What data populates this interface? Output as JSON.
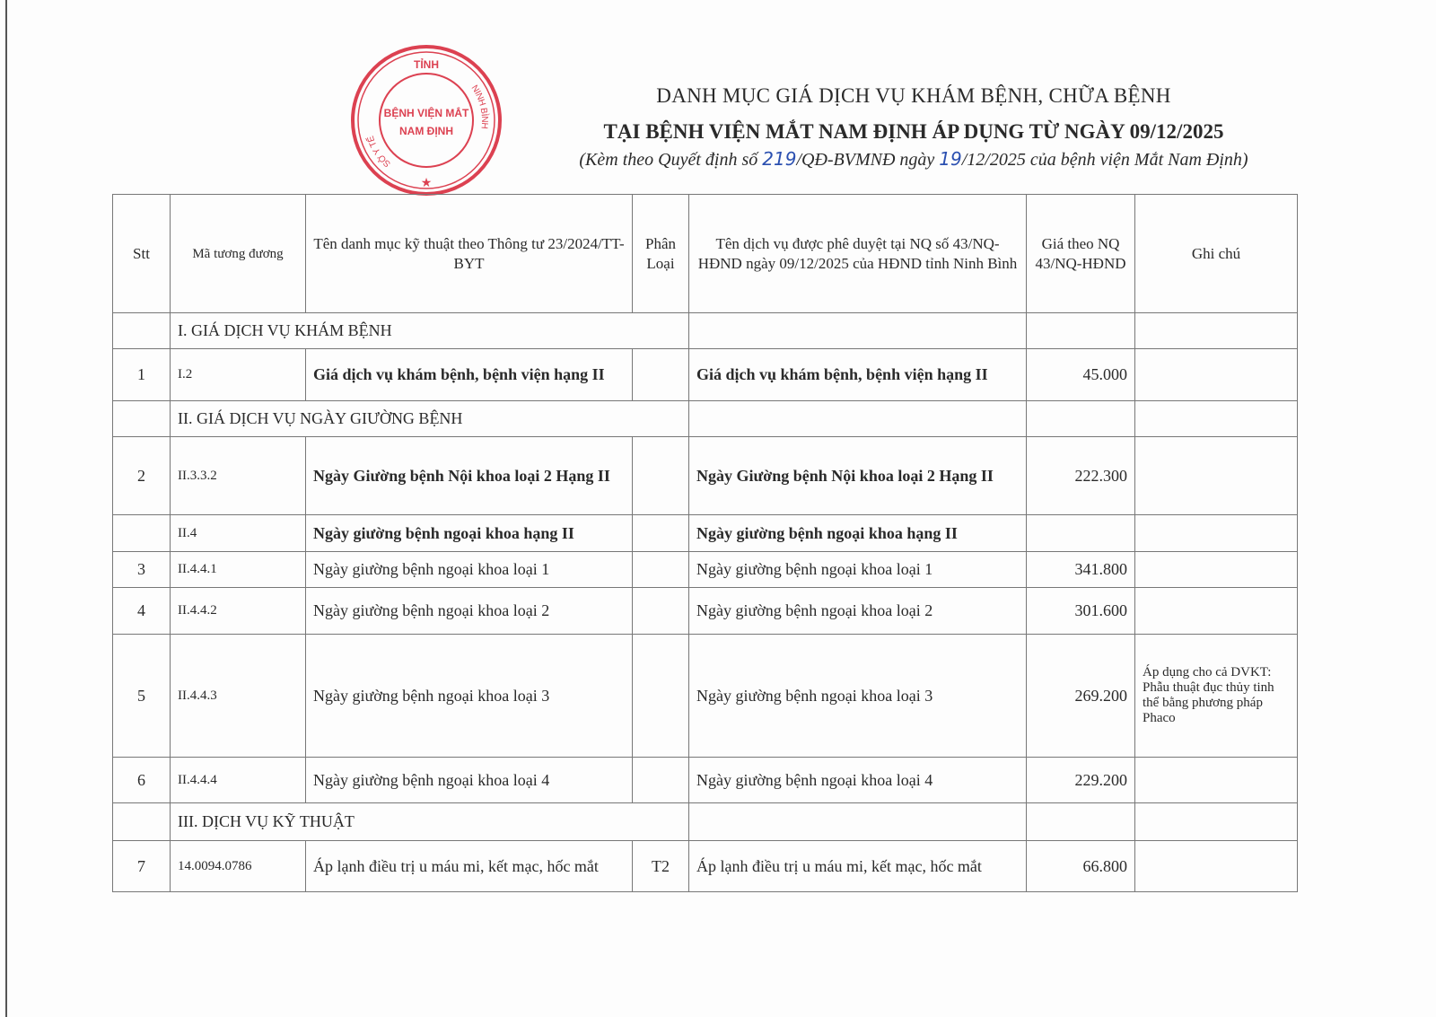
{
  "title": {
    "line1": "DANH MỤC GIÁ DỊCH VỤ KHÁM BỆNH, CHỮA BỆNH",
    "line2": "TẠI BỆNH VIỆN MẮT NAM ĐỊNH ÁP DỤNG TỪ NGÀY 09/12/2025",
    "line3_prefix": "(Kèm theo Quyết định số ",
    "decision_no": "219",
    "line3_mid": "/QĐ-BVMNĐ ngày ",
    "decision_day": "19",
    "line3_suffix": "/12/2025 của bệnh viện Mắt Nam Định)"
  },
  "stamp": {
    "top": "TỈNH",
    "center1": "BỆNH VIỆN MẮT",
    "center2": "NAM ĐỊNH",
    "left": "SỞ Y TẾ",
    "right": "NINH BÌNH",
    "color": "#d8283a"
  },
  "table": {
    "headers": [
      "Stt",
      "Mã tương đương",
      "Tên danh mục kỹ thuật theo Thông tư 23/2024/TT-BYT",
      "Phân Loại",
      "Tên dịch vụ được phê duyệt tại NQ số 43/NQ-HĐND ngày 09/12/2025 của HĐND tỉnh Ninh Bình",
      "Giá theo NQ 43/NQ-HĐND",
      "Ghi chú"
    ],
    "sections": [
      "I. GIÁ DỊCH VỤ KHÁM BỆNH",
      "II. GIÁ DỊCH VỤ NGÀY GIƯỜNG BỆNH",
      "III. DỊCH VỤ KỸ THUẬT"
    ],
    "rows": [
      {
        "stt": "1",
        "code": "I.2",
        "name": "Giá dịch vụ khám bệnh, bệnh viện hạng II",
        "type": "",
        "approved": "Giá dịch vụ khám bệnh, bệnh viện hạng II",
        "price": "45.000",
        "note": ""
      },
      {
        "stt": "2",
        "code": "II.3.3.2",
        "name": "Ngày Giường bệnh Nội khoa loại 2 Hạng II",
        "type": "",
        "approved": "Ngày Giường bệnh Nội khoa loại 2 Hạng II",
        "price": "222.300",
        "note": ""
      },
      {
        "stt": "",
        "code": "II.4",
        "name": "Ngày giường bệnh ngoại khoa hạng II",
        "type": "",
        "approved": "Ngày giường bệnh ngoại khoa hạng II",
        "price": "",
        "note": ""
      },
      {
        "stt": "3",
        "code": "II.4.4.1",
        "name": "Ngày giường bệnh ngoại khoa loại 1",
        "type": "",
        "approved": "Ngày giường bệnh ngoại khoa loại 1",
        "price": "341.800",
        "note": ""
      },
      {
        "stt": "4",
        "code": "II.4.4.2",
        "name": "Ngày giường  bệnh ngoại khoa loại 2",
        "type": "",
        "approved": "Ngày giường  bệnh ngoại khoa loại 2",
        "price": "301.600",
        "note": ""
      },
      {
        "stt": "5",
        "code": "II.4.4.3",
        "name": "Ngày giường bệnh ngoại khoa loại 3",
        "type": "",
        "approved": "Ngày giường bệnh ngoại khoa loại 3",
        "price": "269.200",
        "note": "Áp dụng cho cả DVKT: Phẫu thuật đục thủy tinh thể bằng phương pháp Phaco"
      },
      {
        "stt": "6",
        "code": "II.4.4.4",
        "name": "Ngày giường bệnh ngoại khoa loại 4",
        "type": "",
        "approved": "Ngày giường bệnh ngoại khoa loại 4",
        "price": "229.200",
        "note": ""
      },
      {
        "stt": "7",
        "code": "14.0094.0786",
        "name": "Áp lạnh điều trị u máu mi, kết mạc, hốc mắt",
        "type": "T2",
        "approved": "Áp lạnh điều trị u máu mi, kết mạc, hốc mắt",
        "price": "66.800",
        "note": ""
      }
    ]
  }
}
